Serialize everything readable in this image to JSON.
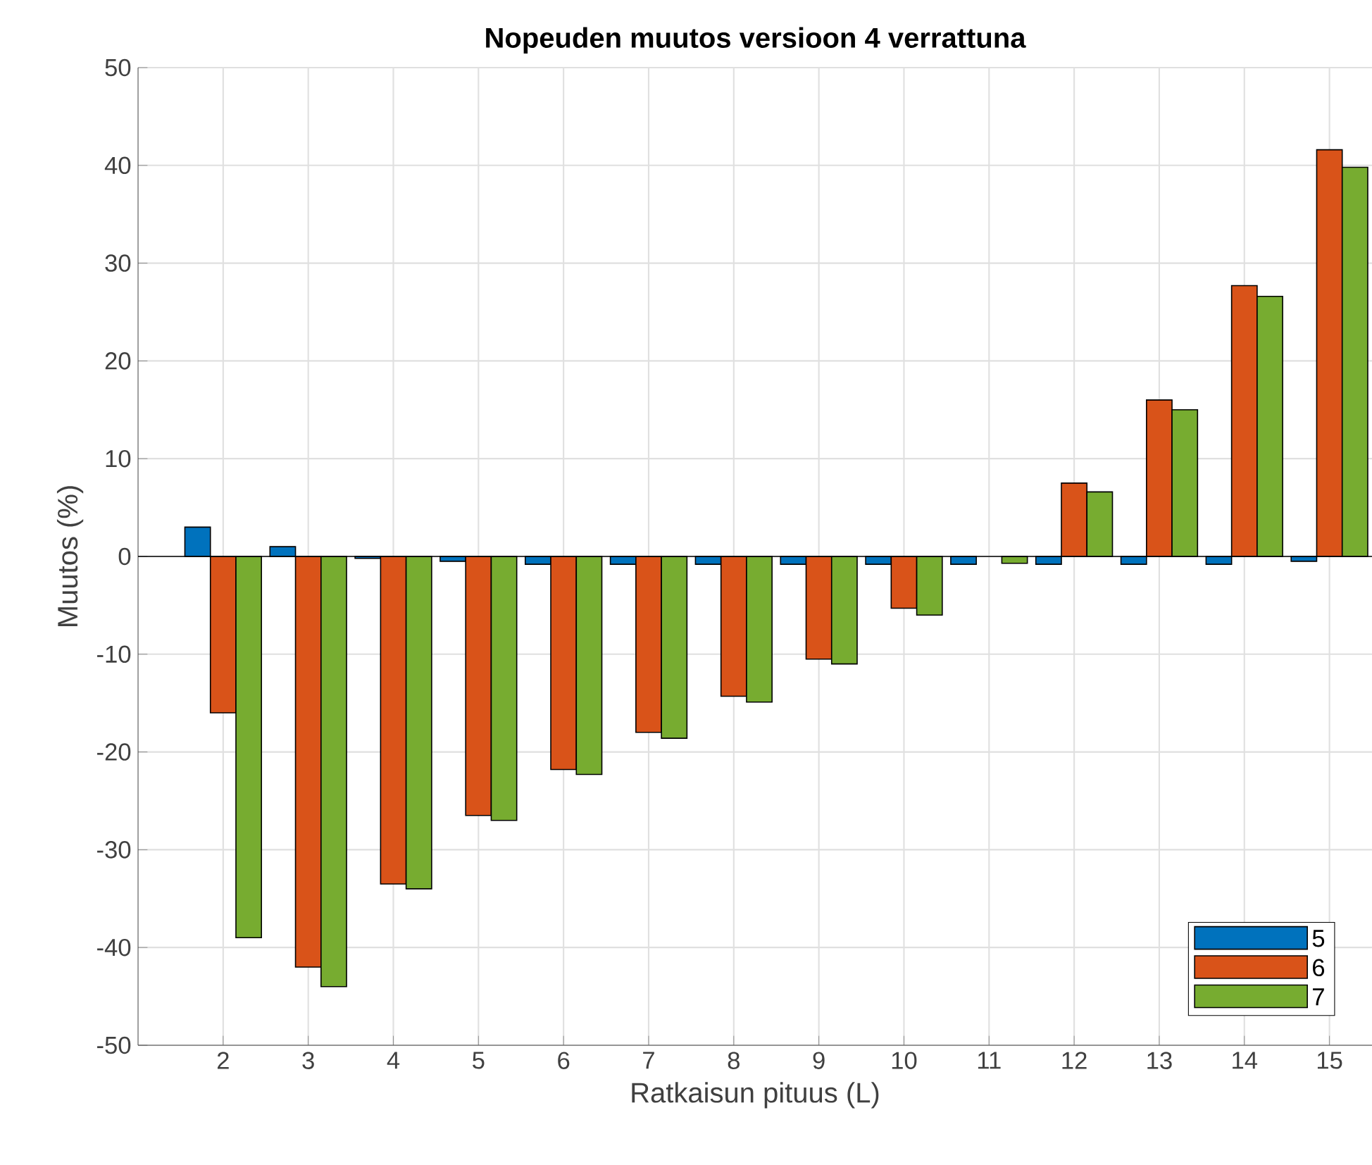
{
  "chart_data": {
    "type": "bar",
    "title": "Nopeuden muutos versioon 4 verrattuna",
    "xlabel": "Ratkaisun pituus (L)",
    "ylabel": "Muutos (%)",
    "x": [
      2,
      3,
      4,
      5,
      6,
      7,
      8,
      9,
      10,
      11,
      12,
      13,
      14,
      15
    ],
    "series": [
      {
        "name": "5",
        "color": "#0072bd",
        "values": [
          3.0,
          1.0,
          -0.2,
          -0.5,
          -0.8,
          -0.8,
          -0.8,
          -0.8,
          -0.8,
          -0.8,
          -0.8,
          -0.8,
          -0.8,
          -0.5
        ]
      },
      {
        "name": "6",
        "color": "#d95319",
        "values": [
          -16,
          -42,
          -33.5,
          -26.5,
          -21.8,
          -18,
          -14.3,
          -10.5,
          -5.3,
          null,
          7.5,
          16,
          27.7,
          41.6
        ]
      },
      {
        "name": "7",
        "color": "#77ac30",
        "values": [
          -39,
          -44,
          -34,
          -27,
          -22.3,
          -18.6,
          -14.9,
          -11,
          -6,
          -0.7,
          6.6,
          15,
          26.6,
          39.8
        ]
      }
    ],
    "xlim": [
      1,
      15.5
    ],
    "xticks": [
      2,
      3,
      4,
      5,
      6,
      7,
      8,
      9,
      10,
      11,
      12,
      13,
      14,
      15
    ],
    "ylim": [
      -50,
      50
    ],
    "yticks": [
      -50,
      -40,
      -30,
      -20,
      -10,
      0,
      10,
      20,
      30,
      40,
      50
    ],
    "grid": true,
    "legend": "bottom right"
  }
}
